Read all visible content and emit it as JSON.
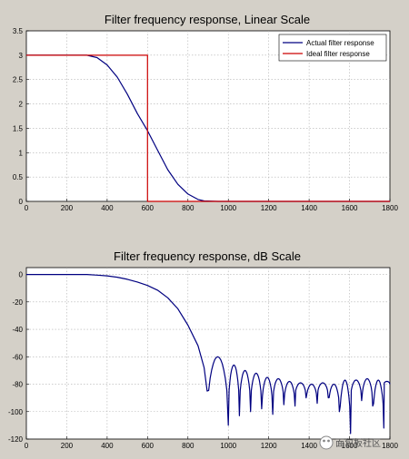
{
  "colors": {
    "figure_bg": "#d4d0c8",
    "axes_bg": "#ffffff",
    "actual": "#000080",
    "ideal": "#cc0000",
    "grid": "#b0b0b0"
  },
  "watermark": "面包板社区",
  "chart_data": [
    {
      "type": "line",
      "title": "Filter frequency response, Linear Scale",
      "xlabel": "",
      "ylabel": "",
      "xlim": [
        0,
        1800
      ],
      "ylim": [
        0,
        3.5
      ],
      "xticks": [
        0,
        200,
        400,
        600,
        800,
        1000,
        1200,
        1400,
        1600,
        1800
      ],
      "xtick_labels": [
        "0",
        "200",
        "400",
        "600",
        "800",
        "1000",
        "1200",
        "1400",
        "1600",
        "1800"
      ],
      "yticks": [
        0,
        0.5,
        1,
        1.5,
        2,
        2.5,
        3,
        3.5
      ],
      "ytick_labels": [
        "0",
        "0.5",
        "1",
        "1.5",
        "2",
        "2.5",
        "3",
        "3.5"
      ],
      "grid": true,
      "legend": "top-right",
      "series": [
        {
          "name": "Actual filter response",
          "color": "#000080",
          "x": [
            0,
            300,
            350,
            400,
            450,
            500,
            550,
            600,
            650,
            700,
            750,
            800,
            850,
            880,
            950,
            1800
          ],
          "y": [
            3.0,
            3.0,
            2.95,
            2.8,
            2.55,
            2.2,
            1.8,
            1.45,
            1.05,
            0.65,
            0.35,
            0.15,
            0.04,
            0.01,
            0.0,
            0.0
          ]
        },
        {
          "name": "Ideal filter response",
          "color": "#cc0000",
          "x": [
            0,
            600,
            600,
            1800
          ],
          "y": [
            3.0,
            3.0,
            0.0,
            0.0
          ]
        }
      ]
    },
    {
      "type": "line",
      "title": "Filter frequency response, dB Scale",
      "xlabel": "",
      "ylabel": "",
      "xlim": [
        0,
        1800
      ],
      "ylim": [
        -120,
        5
      ],
      "xticks": [
        0,
        200,
        400,
        600,
        800,
        1000,
        1200,
        1400,
        1600,
        1800
      ],
      "xtick_labels": [
        "0",
        "200",
        "400",
        "600",
        "800",
        "1000",
        "1200",
        "1400",
        "1600",
        "1800"
      ],
      "yticks": [
        0,
        -20,
        -40,
        -60,
        -80,
        -100,
        -120
      ],
      "ytick_labels": [
        "0",
        "-20",
        "-40",
        "-60",
        "-80",
        "-100",
        "-120"
      ],
      "grid": true,
      "series": [
        {
          "color": "#000080",
          "x": [
            0,
            300,
            350,
            400,
            450,
            500,
            550,
            600,
            650,
            700,
            750,
            800,
            850,
            880,
            895
          ],
          "y": [
            0,
            0,
            -0.5,
            -1,
            -2,
            -3.5,
            -5.5,
            -8,
            -11.5,
            -17,
            -25,
            -37,
            -52,
            -68,
            -85
          ],
          "lobes": [
            {
              "start": 895,
              "end": 1000,
              "peak": -60,
              "min": -110
            },
            {
              "start": 1000,
              "end": 1055,
              "peak": -66,
              "min": -103
            },
            {
              "start": 1055,
              "end": 1110,
              "peak": -70,
              "min": -100
            },
            {
              "start": 1110,
              "end": 1165,
              "peak": -72,
              "min": -98
            },
            {
              "start": 1165,
              "end": 1220,
              "peak": -75,
              "min": -102
            },
            {
              "start": 1220,
              "end": 1275,
              "peak": -76,
              "min": -95
            },
            {
              "start": 1275,
              "end": 1330,
              "peak": -78,
              "min": -96
            },
            {
              "start": 1330,
              "end": 1385,
              "peak": -79,
              "min": -90
            },
            {
              "start": 1385,
              "end": 1440,
              "peak": -80,
              "min": -94
            },
            {
              "start": 1440,
              "end": 1495,
              "peak": -79,
              "min": -90
            },
            {
              "start": 1495,
              "end": 1550,
              "peak": -80,
              "min": -100
            },
            {
              "start": 1550,
              "end": 1605,
              "peak": -77,
              "min": -116
            },
            {
              "start": 1605,
              "end": 1660,
              "peak": -77,
              "min": -92
            },
            {
              "start": 1660,
              "end": 1715,
              "peak": -76,
              "min": -96
            },
            {
              "start": 1715,
              "end": 1770,
              "peak": -77,
              "min": -112
            },
            {
              "start": 1770,
              "end": 1800,
              "peak": -78,
              "min": -80
            }
          ]
        }
      ]
    }
  ]
}
